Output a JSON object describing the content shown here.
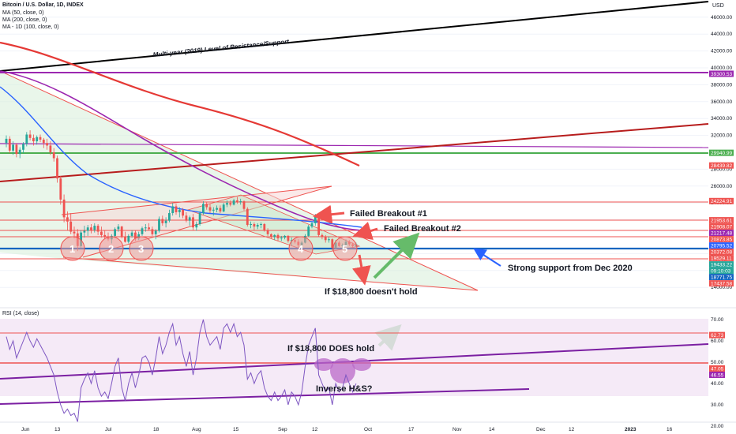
{
  "header": {
    "symbol": "Bitcoin / U.S. Dollar, 1D, INDEX",
    "indicators": [
      "MA (50, close, 0)",
      "MA (200, close, 0)",
      "MA - 1D (100, close, 0)"
    ],
    "currency": "USD"
  },
  "rsi_header": "RSI (14, close)",
  "colors": {
    "background": "#ffffff",
    "grid": "#f0f3fa",
    "up": "#26a69a",
    "down": "#ef5350",
    "ma50": "#2962ff",
    "ma200": "#e53935",
    "ma100": "#9c27b0",
    "support": "#1565c0",
    "resistance": "#ef5350",
    "green_line": "#4caf50",
    "purple_line": "#9c27b0",
    "trend_black": "#000000",
    "trend_brown": "#b71c1c",
    "rsi_line": "#7e57c2",
    "rsi_band": "#e1bee7"
  },
  "annotations": {
    "long_term_line": "Multi-year (2019) Level of Resistance/Support",
    "breakout1": "Failed Breakout #1",
    "breakout2": "Failed Breakout #2",
    "support_text": "Strong support from Dec 2020",
    "no_hold": "If $18,800 doesn't hold",
    "does_hold": "If $18,800 DOES hold",
    "inverse_hs": "Inverse H&S?",
    "circles": [
      "1",
      "2",
      "3",
      "4",
      "5"
    ]
  },
  "chart_data": [
    {
      "type": "candlestick",
      "price_axis": {
        "ticks": [
          14000,
          16000,
          18000,
          20000,
          22000,
          24000,
          26000,
          28000,
          30000,
          32000,
          34000,
          36000,
          38000,
          40000,
          42000,
          44000,
          46000
        ],
        "tick_labels": [
          "14000.00",
          "16000.00",
          "18000.00",
          "20000.00",
          "22000.00",
          "24000.00",
          "26000.00",
          "28000.00",
          "30000.00",
          "32000.00",
          "34000.00",
          "36000.00",
          "38000.00",
          "40000.00",
          "42000.00",
          "44000.00",
          "46000.00"
        ],
        "range": [
          12000,
          48000
        ]
      },
      "time_axis": {
        "labels": [
          "Jun",
          "13",
          "Jul",
          "18",
          "Aug",
          "15",
          "Sep",
          "12",
          "Oct",
          "17",
          "Nov",
          "14",
          "Dec",
          "12",
          "2023",
          "16"
        ]
      },
      "price_tags": [
        {
          "label": "39300.53",
          "value": 39300.53,
          "color": "#9c27b0"
        },
        {
          "label": "29940.99",
          "value": 29940.99,
          "color": "#4caf50"
        },
        {
          "label": "28439.82",
          "value": 28439.82,
          "color": "#ef5350"
        },
        {
          "label": "24224.91",
          "value": 24224.91,
          "color": "#ef5350"
        },
        {
          "label": "21953.61",
          "value": 21953.61,
          "color": "#ef5350"
        },
        {
          "label": "21908.07",
          "value": 21908.07,
          "color": "#ef5350"
        },
        {
          "label": "21217.48",
          "value": 21217.48,
          "color": "#9c27b0"
        },
        {
          "label": "20873.85",
          "value": 20873.85,
          "color": "#ef5350"
        },
        {
          "label": "20795.52",
          "value": 20795.52,
          "color": "#2962ff"
        },
        {
          "label": "20372.08",
          "value": 20372.08,
          "color": "#ef5350"
        },
        {
          "label": "19529.11",
          "value": 19529.11,
          "color": "#ef5350"
        },
        {
          "label": "19433.22",
          "value": 19433.22,
          "color": "#26a69a"
        },
        {
          "label": "09:10:03",
          "value": 19120,
          "color": "#26a69a"
        },
        {
          "label": "18771.75",
          "value": 18771.75,
          "color": "#1565c0"
        },
        {
          "label": "17437.58",
          "value": 17437.58,
          "color": "#ef5350"
        }
      ],
      "candles": [
        [
          31100,
          32000,
          30600,
          31600
        ],
        [
          31600,
          31900,
          29900,
          30200
        ],
        [
          30200,
          31300,
          29700,
          30900
        ],
        [
          30900,
          31100,
          29400,
          29800
        ],
        [
          29800,
          30600,
          29300,
          30300
        ],
        [
          30300,
          31200,
          29900,
          31000
        ],
        [
          31000,
          32400,
          30700,
          32100
        ],
        [
          32100,
          32600,
          31400,
          31700
        ],
        [
          31700,
          32100,
          30800,
          31300
        ],
        [
          31300,
          32000,
          30900,
          31800
        ],
        [
          31800,
          32100,
          31200,
          31500
        ],
        [
          31500,
          31700,
          30500,
          31100
        ],
        [
          31100,
          31600,
          30300,
          30800
        ],
        [
          30800,
          31300,
          29700,
          30000
        ],
        [
          30000,
          30500,
          28900,
          29300
        ],
        [
          29300,
          29600,
          26400,
          26900
        ],
        [
          26900,
          27200,
          23800,
          24400
        ],
        [
          24400,
          25000,
          21700,
          22300
        ],
        [
          22300,
          23000,
          20800,
          21800
        ],
        [
          21800,
          22800,
          20300,
          20600
        ],
        [
          20600,
          21200,
          19800,
          20400
        ],
        [
          20400,
          20900,
          18300,
          18900
        ],
        [
          18900,
          20800,
          18700,
          20500
        ],
        [
          20500,
          21300,
          19900,
          20700
        ],
        [
          20700,
          21400,
          20100,
          21100
        ],
        [
          21100,
          21500,
          20400,
          20800
        ],
        [
          20800,
          21600,
          20500,
          21300
        ],
        [
          21300,
          21500,
          20200,
          20600
        ],
        [
          20600,
          21200,
          19900,
          20200
        ],
        [
          20200,
          20700,
          19700,
          20000
        ],
        [
          20000,
          20500,
          19500,
          19700
        ],
        [
          19700,
          20300,
          19200,
          20100
        ],
        [
          20100,
          21100,
          19900,
          20900
        ],
        [
          20900,
          21500,
          20600,
          21200
        ],
        [
          21200,
          21300,
          19800,
          20000
        ],
        [
          20000,
          20600,
          19300,
          19400
        ],
        [
          19400,
          20300,
          19200,
          20100
        ],
        [
          20100,
          20800,
          19900,
          20500
        ],
        [
          20500,
          20700,
          19500,
          19800
        ],
        [
          19800,
          20600,
          19600,
          20300
        ],
        [
          20300,
          21200,
          20100,
          21000
        ],
        [
          21000,
          21500,
          20600,
          21100
        ],
        [
          21100,
          21600,
          20700,
          20900
        ],
        [
          20900,
          21200,
          20100,
          20300
        ],
        [
          20300,
          20900,
          19700,
          20700
        ],
        [
          20700,
          22400,
          20500,
          22100
        ],
        [
          22100,
          22500,
          21300,
          21600
        ],
        [
          21600,
          22300,
          21100,
          21900
        ],
        [
          21900,
          23200,
          21700,
          22800
        ],
        [
          22800,
          24000,
          22500,
          23600
        ],
        [
          23600,
          23900,
          22600,
          22900
        ],
        [
          22900,
          23500,
          22300,
          23200
        ],
        [
          23200,
          23400,
          22200,
          22500
        ],
        [
          22500,
          22900,
          21700,
          21900
        ],
        [
          21900,
          22500,
          21300,
          22300
        ],
        [
          22300,
          22700,
          20800,
          21100
        ],
        [
          21100,
          21800,
          20700,
          21500
        ],
        [
          21500,
          23000,
          21300,
          22800
        ],
        [
          22800,
          24200,
          22600,
          23900
        ],
        [
          23900,
          24100,
          23200,
          23500
        ],
        [
          23500,
          23900,
          22800,
          23100
        ],
        [
          23100,
          23500,
          22500,
          23200
        ],
        [
          23200,
          23700,
          22900,
          23400
        ],
        [
          23400,
          23700,
          22800,
          23000
        ],
        [
          23000,
          24000,
          22900,
          23800
        ],
        [
          23800,
          24300,
          23500,
          24000
        ],
        [
          24000,
          24300,
          23600,
          23800
        ],
        [
          23800,
          24500,
          23700,
          24300
        ],
        [
          24300,
          24700,
          23900,
          24100
        ],
        [
          24100,
          24500,
          23800,
          24200
        ],
        [
          24200,
          24300,
          23100,
          23300
        ],
        [
          23300,
          23500,
          21200,
          21400
        ],
        [
          21400,
          21800,
          21000,
          21500
        ],
        [
          21500,
          21700,
          20800,
          21200
        ],
        [
          21200,
          21600,
          20900,
          21400
        ],
        [
          21400,
          21700,
          21000,
          21500
        ],
        [
          21500,
          21600,
          20600,
          20800
        ],
        [
          20800,
          21000,
          20100,
          20300
        ],
        [
          20300,
          20400,
          19800,
          20000
        ],
        [
          20000,
          20300,
          19600,
          20200
        ],
        [
          20200,
          20400,
          19500,
          19800
        ],
        [
          19800,
          20100,
          19500,
          19900
        ],
        [
          19900,
          20200,
          19700,
          20100
        ],
        [
          20100,
          20200,
          19300,
          19500
        ],
        [
          19500,
          19900,
          18900,
          19600
        ],
        [
          19600,
          19800,
          19200,
          19400
        ],
        [
          19400,
          19700,
          18600,
          19000
        ],
        [
          19000,
          19500,
          18700,
          19300
        ],
        [
          19300,
          20300,
          19200,
          20100
        ],
        [
          20100,
          21400,
          20000,
          21200
        ],
        [
          21200,
          21800,
          21000,
          21600
        ],
        [
          21600,
          22700,
          21300,
          22400
        ],
        [
          22400,
          22600,
          20000,
          20200
        ],
        [
          20200,
          20400,
          19700,
          20000
        ],
        [
          20000,
          20200,
          19300,
          19600
        ],
        [
          19600,
          20000,
          19300,
          19700
        ],
        [
          19700,
          19800,
          18300,
          18700
        ],
        [
          18700,
          19600,
          18500,
          19300
        ],
        [
          19300,
          19500,
          18800,
          18900
        ],
        [
          18900,
          19200,
          18500,
          19000
        ],
        [
          19000,
          19700,
          18800,
          19400
        ],
        [
          19400,
          19600,
          18900,
          19100
        ],
        [
          19100,
          19300,
          18700,
          18900
        ],
        [
          18900,
          19300,
          18800,
          19100
        ]
      ]
    },
    {
      "type": "line",
      "name": "RSI",
      "y_axis": {
        "ticks": [
          20,
          30,
          40,
          50,
          60,
          70
        ],
        "tick_labels": [
          "20.00",
          "30.00",
          "40.00",
          "50.00",
          "60.00",
          "70.00"
        ],
        "range": [
          16,
          74
        ]
      },
      "price_tags": [
        {
          "label": "62.73",
          "value": 62.73,
          "color": "#ef5350"
        },
        {
          "label": "47.05",
          "value": 47.05,
          "color": "#ef5350"
        },
        {
          "label": "46.55",
          "value": 46.55,
          "color": "#9c27b0"
        }
      ],
      "values": [
        62,
        56,
        60,
        52,
        56,
        60,
        64,
        60,
        57,
        61,
        58,
        55,
        52,
        48,
        44,
        36,
        30,
        26,
        28,
        25,
        26,
        22,
        38,
        42,
        45,
        40,
        46,
        38,
        34,
        36,
        33,
        40,
        48,
        52,
        38,
        32,
        40,
        45,
        38,
        44,
        52,
        53,
        50,
        44,
        52,
        62,
        54,
        58,
        64,
        68,
        58,
        62,
        54,
        48,
        55,
        44,
        52,
        64,
        70,
        62,
        58,
        60,
        62,
        56,
        66,
        68,
        64,
        68,
        62,
        64,
        58,
        42,
        45,
        40,
        44,
        46,
        38,
        34,
        32,
        36,
        32,
        34,
        37,
        30,
        36,
        34,
        30,
        36,
        48,
        58,
        62,
        66,
        44,
        40,
        36,
        38,
        30,
        40,
        36,
        38,
        44,
        40,
        36,
        40
      ]
    }
  ]
}
